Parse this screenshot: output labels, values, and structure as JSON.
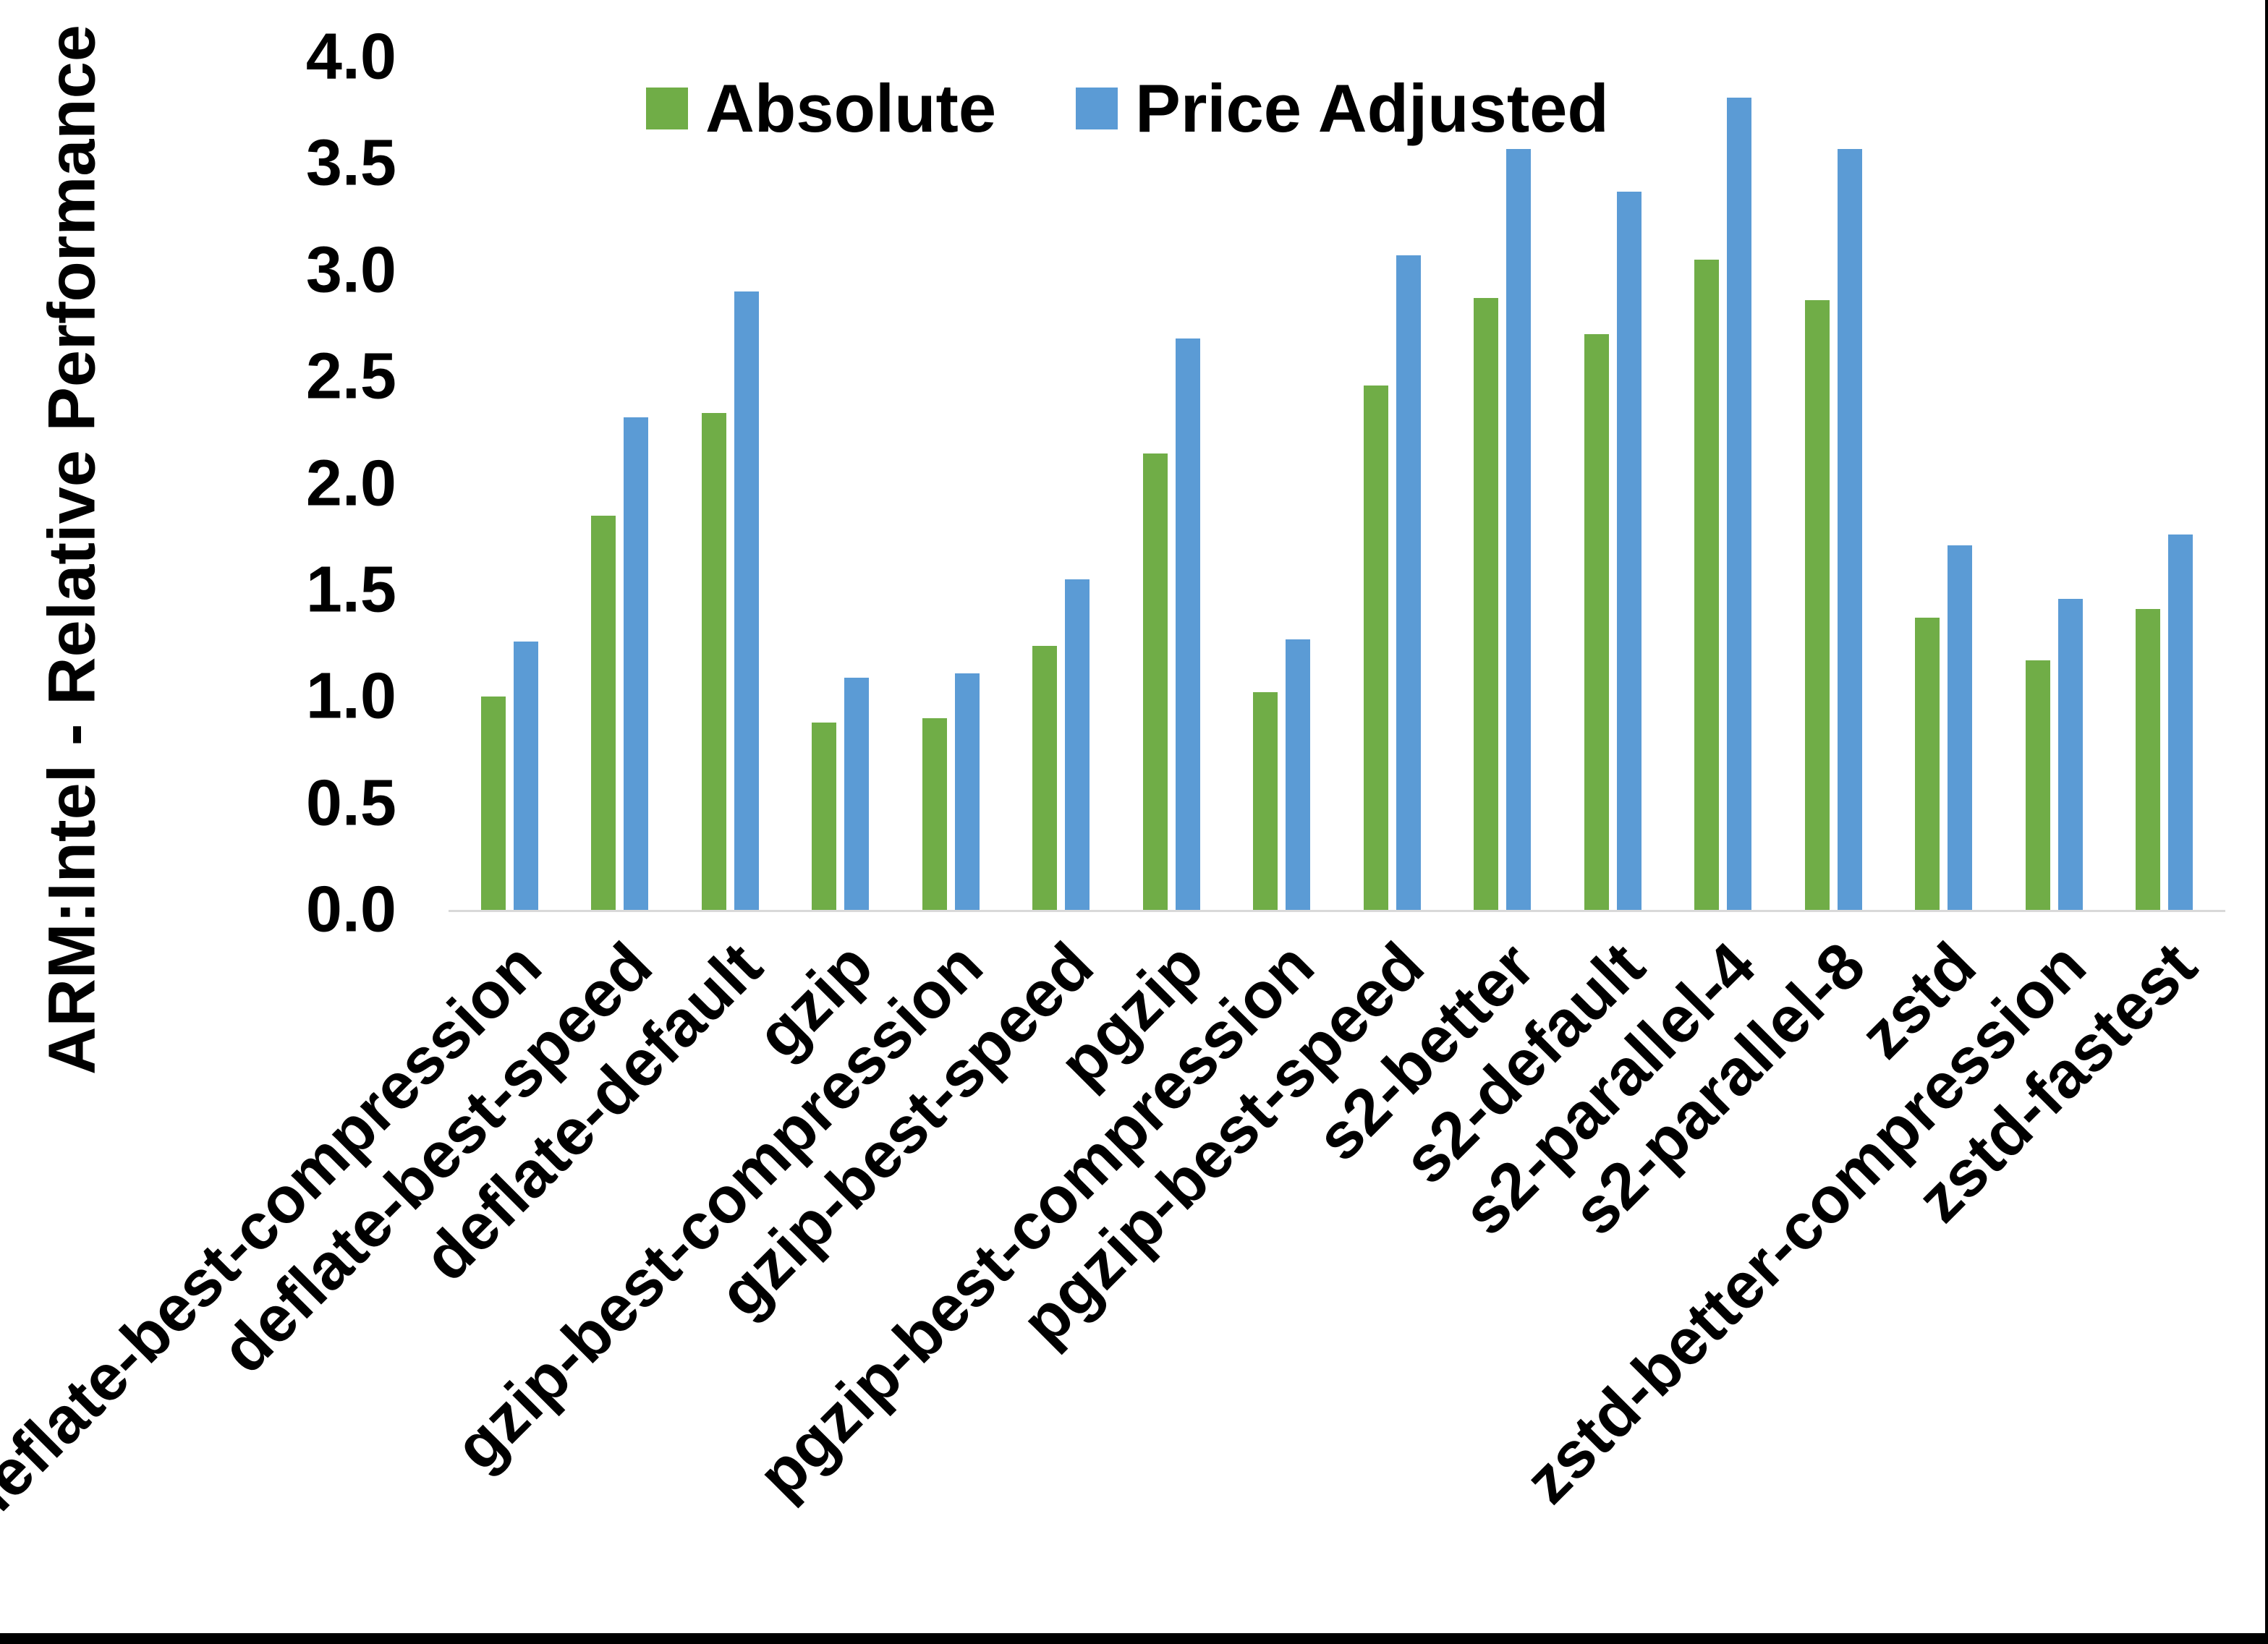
{
  "page": {
    "background": "#ffffff",
    "edge_color": "#000000"
  },
  "axis": {
    "line_color": "#d9d9d9",
    "text_color": "#000000"
  },
  "chart_data": {
    "type": "bar",
    "title": "",
    "xlabel": "",
    "ylabel": "ARM:Intel - Relative Performance",
    "ylim": [
      0.0,
      4.0
    ],
    "ytick_step": 0.5,
    "yticks": [
      "4.0",
      "3.5",
      "3.0",
      "2.5",
      "2.0",
      "1.5",
      "1.0",
      "0.5",
      "0.0"
    ],
    "grid": false,
    "legend_position": "top-center",
    "categories": [
      "deflate-best-compression",
      "deflate-best-speed",
      "deflate-default",
      "gzip",
      "gzip-best-compression",
      "gzip-best-speed",
      "pgzip",
      "pgzip-best-compression",
      "pgzip-best-speed",
      "s2-better",
      "s2-default",
      "s2-parallel-4",
      "s2-parallel-8",
      "zstd",
      "zstd-better-compression",
      "zstd-fastest"
    ],
    "series": [
      {
        "name": "Absolute",
        "color": "#70AD47",
        "values": [
          1.0,
          1.85,
          2.33,
          0.88,
          0.9,
          1.24,
          2.14,
          1.02,
          2.46,
          2.87,
          2.7,
          3.05,
          2.86,
          1.37,
          1.17,
          1.41
        ]
      },
      {
        "name": "Price Adjusted",
        "color": "#5B9BD5",
        "values": [
          1.26,
          2.31,
          2.9,
          1.09,
          1.11,
          1.55,
          2.68,
          1.27,
          3.07,
          3.57,
          3.37,
          3.81,
          3.57,
          1.71,
          1.46,
          1.76
        ]
      }
    ]
  }
}
